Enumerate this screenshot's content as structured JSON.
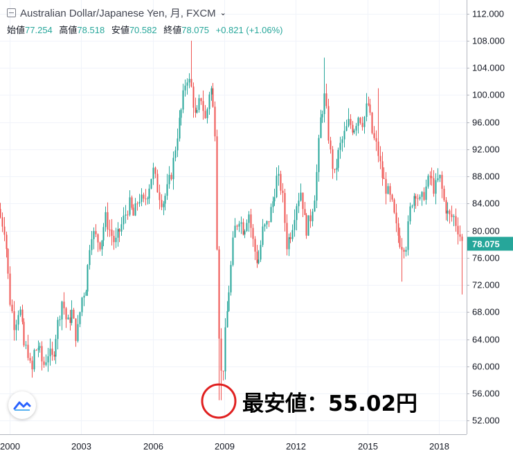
{
  "legend": {
    "title": "Australian Dollar/Japanese Yen, 月, FXCM",
    "open_label": "始値",
    "open": "77.254",
    "high_label": "高値",
    "high": "78.518",
    "low_label": "安値",
    "low": "70.582",
    "close_label": "終値",
    "close": "78.075",
    "change": "+0.821 (+1.06%)"
  },
  "annotation": {
    "text": "最安値：55.02円",
    "value": 55.02,
    "date": "2008-10"
  },
  "colors": {
    "up": "#26a69a",
    "down": "#ef5350",
    "price_tag": "#26a69a",
    "annotation_circle": "#e02020"
  },
  "chart_data": {
    "type": "candlestick",
    "price_axis": {
      "side": "right",
      "ticks": [
        52,
        56,
        60,
        64,
        68,
        72,
        76,
        80,
        84,
        88,
        92,
        96,
        100,
        104,
        108,
        112
      ],
      "ylim": [
        50,
        114
      ]
    },
    "time_axis": {
      "labels": [
        "2000",
        "2003",
        "2006",
        "2009",
        "2012",
        "2015",
        "2018"
      ],
      "xlim": [
        1999.6,
        2019.15
      ]
    },
    "last_price": 78.075,
    "grid": true,
    "close_path": [
      [
        1999.6,
        82
      ],
      [
        1999.8,
        80
      ],
      [
        2000.0,
        70
      ],
      [
        2000.2,
        66
      ],
      [
        2000.4,
        69
      ],
      [
        2000.6,
        63
      ],
      [
        2000.8,
        62
      ],
      [
        2000.9,
        58
      ],
      [
        2001.0,
        62
      ],
      [
        2001.2,
        63
      ],
      [
        2001.4,
        60
      ],
      [
        2001.6,
        62
      ],
      [
        2001.8,
        61
      ],
      [
        2001.9,
        64
      ],
      [
        2002.0,
        66
      ],
      [
        2002.2,
        70
      ],
      [
        2002.4,
        66
      ],
      [
        2002.6,
        68
      ],
      [
        2002.8,
        64
      ],
      [
        2003.0,
        70
      ],
      [
        2003.2,
        72
      ],
      [
        2003.4,
        80
      ],
      [
        2003.6,
        79
      ],
      [
        2003.8,
        78
      ],
      [
        2004.0,
        82
      ],
      [
        2004.2,
        80
      ],
      [
        2004.4,
        78
      ],
      [
        2004.6,
        80
      ],
      [
        2004.8,
        82
      ],
      [
        2005.0,
        84
      ],
      [
        2005.2,
        82
      ],
      [
        2005.4,
        85
      ],
      [
        2005.6,
        84
      ],
      [
        2005.8,
        86
      ],
      [
        2006.0,
        89
      ],
      [
        2006.2,
        86
      ],
      [
        2006.4,
        84
      ],
      [
        2006.6,
        86
      ],
      [
        2006.8,
        89
      ],
      [
        2007.0,
        94
      ],
      [
        2007.2,
        98
      ],
      [
        2007.4,
        103
      ],
      [
        2007.6,
        101
      ],
      [
        2007.8,
        96
      ],
      [
        2008.0,
        100
      ],
      [
        2008.2,
        96
      ],
      [
        2008.4,
        102
      ],
      [
        2008.6,
        95
      ],
      [
        2008.7,
        75
      ],
      [
        2008.8,
        60
      ],
      [
        2008.9,
        58
      ],
      [
        2009.0,
        64
      ],
      [
        2009.2,
        72
      ],
      [
        2009.4,
        80
      ],
      [
        2009.6,
        82
      ],
      [
        2009.8,
        80
      ],
      [
        2010.0,
        83
      ],
      [
        2010.2,
        78
      ],
      [
        2010.4,
        75
      ],
      [
        2010.6,
        80
      ],
      [
        2010.8,
        81
      ],
      [
        2011.0,
        84
      ],
      [
        2011.2,
        88
      ],
      [
        2011.4,
        86
      ],
      [
        2011.6,
        78
      ],
      [
        2011.8,
        80
      ],
      [
        2012.0,
        84
      ],
      [
        2012.2,
        86
      ],
      [
        2012.4,
        80
      ],
      [
        2012.6,
        82
      ],
      [
        2012.8,
        86
      ],
      [
        2013.0,
        96
      ],
      [
        2013.2,
        100
      ],
      [
        2013.4,
        92
      ],
      [
        2013.6,
        88
      ],
      [
        2013.8,
        92
      ],
      [
        2014.0,
        94
      ],
      [
        2014.2,
        96
      ],
      [
        2014.4,
        95
      ],
      [
        2014.6,
        97
      ],
      [
        2014.8,
        96
      ],
      [
        2015.0,
        99
      ],
      [
        2015.2,
        94
      ],
      [
        2015.4,
        92
      ],
      [
        2015.6,
        88
      ],
      [
        2015.8,
        86
      ],
      [
        2016.0,
        84
      ],
      [
        2016.2,
        80
      ],
      [
        2016.4,
        78
      ],
      [
        2016.6,
        78
      ],
      [
        2016.8,
        84
      ],
      [
        2017.0,
        86
      ],
      [
        2017.2,
        84
      ],
      [
        2017.4,
        86
      ],
      [
        2017.6,
        88
      ],
      [
        2017.8,
        86
      ],
      [
        2018.0,
        88
      ],
      [
        2018.2,
        84
      ],
      [
        2018.4,
        82
      ],
      [
        2018.6,
        82
      ],
      [
        2018.8,
        80
      ],
      [
        2018.95,
        78
      ]
    ],
    "extremes": [
      [
        2007.6,
        108
      ],
      [
        2008.8,
        55.02
      ],
      [
        2013.2,
        105.5
      ],
      [
        2015.4,
        101
      ],
      [
        2016.4,
        72.5
      ],
      [
        2018.95,
        70.6
      ]
    ]
  }
}
